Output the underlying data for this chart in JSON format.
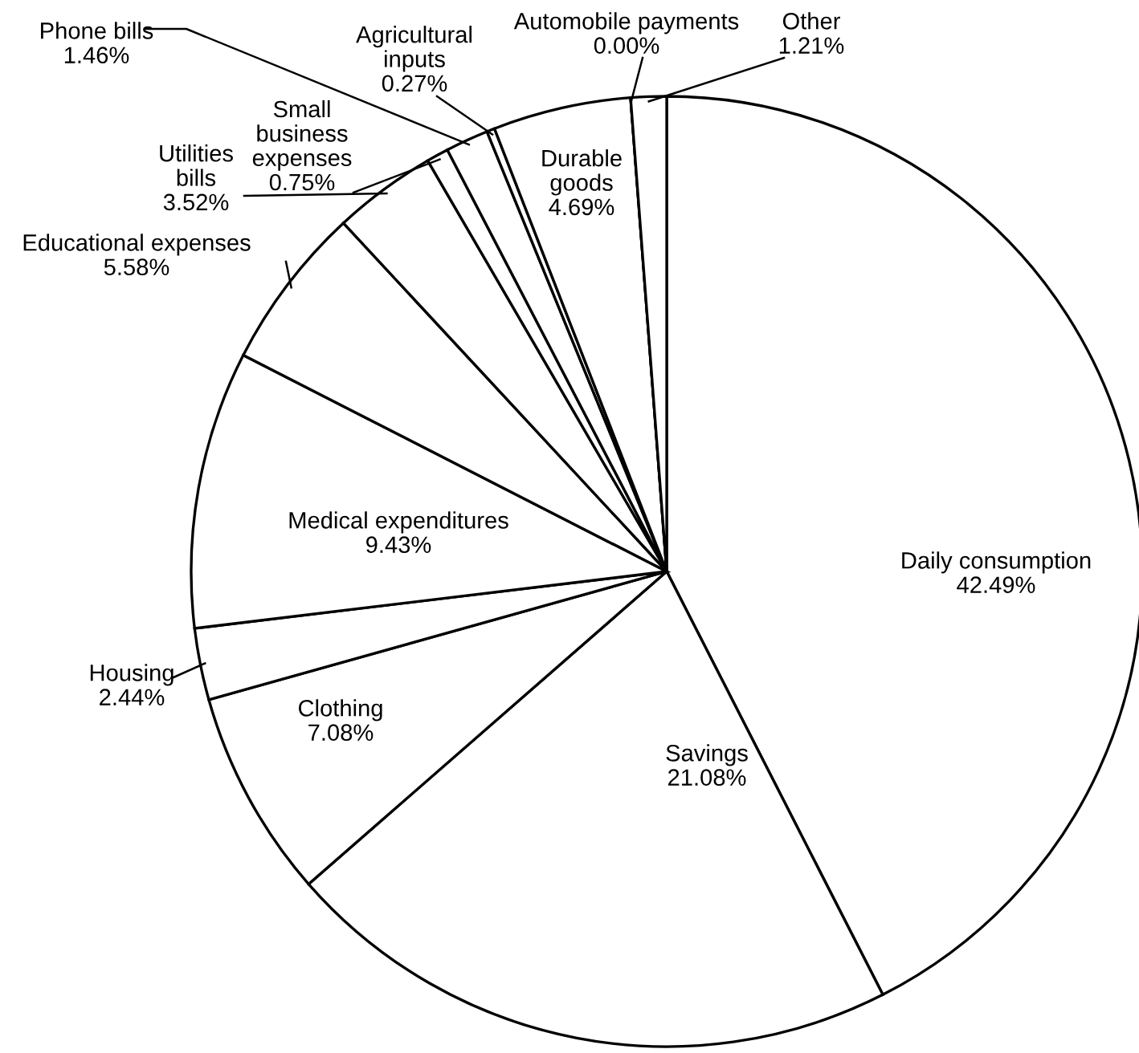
{
  "chart_data": {
    "type": "pie",
    "categories": [
      "Daily consumption",
      "Savings",
      "Clothing",
      "Housing",
      "Medical expenditures",
      "Educational expenses",
      "Utilities\nbills",
      "Small\nbusiness\nexpenses",
      "Phone bills",
      "Agricultural\ninputs",
      "Durable\ngoods",
      "Automobile payments",
      "Other"
    ],
    "values": [
      42.49,
      21.08,
      7.08,
      2.44,
      9.43,
      5.58,
      3.52,
      0.75,
      1.46,
      0.27,
      4.69,
      0.0,
      1.21
    ],
    "colors": [
      "#ffffff",
      "#ffffff",
      "#ffffff",
      "#ffffff",
      "#ffffff",
      "#ffffff",
      "#ffffff",
      "#ffffff",
      "#ffffff",
      "#ffffff",
      "#ffffff",
      "#ffffff",
      "#ffffff"
    ],
    "value_labels": [
      "42.49%",
      "21.08%",
      "7.08%",
      "2.44%",
      "9.43%",
      "5.58%",
      "3.52%",
      "0.75%",
      "1.46%",
      "0.27%",
      "4.69%",
      "0.00%",
      "1.21%"
    ]
  }
}
